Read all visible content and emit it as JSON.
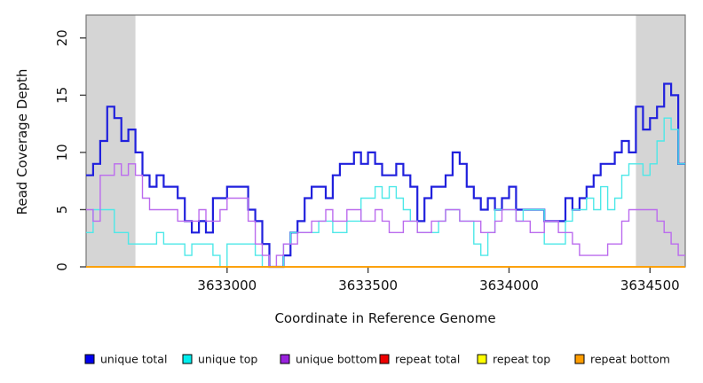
{
  "chart_data": {
    "type": "line",
    "subtype": "step",
    "title": "",
    "xlabel": "Coordinate in Reference Genome",
    "ylabel": "Read Coverage Depth",
    "xlim": [
      3632500,
      3634625
    ],
    "ylim": [
      0,
      22
    ],
    "x_ticks": [
      3633000,
      3633500,
      3634000,
      3634500
    ],
    "y_ticks": [
      0,
      5,
      10,
      15,
      20
    ],
    "grid": false,
    "legend_position": "bottom",
    "x_start": 3632500,
    "x_step": 25,
    "highlight_regions": [
      {
        "x0": 3632500,
        "x1": 3632675,
        "color": "#d5d5d5"
      },
      {
        "x0": 3634450,
        "x1": 3634625,
        "color": "#d5d5d5"
      }
    ],
    "series": [
      {
        "name": "unique total",
        "color": "#2020dd",
        "legend_color": "#0000ee",
        "line_width": 2.2,
        "values": [
          8,
          9,
          11,
          14,
          13,
          11,
          12,
          10,
          8,
          7,
          8,
          7,
          7,
          6,
          4,
          3,
          4,
          3,
          6,
          6,
          7,
          7,
          7,
          5,
          4,
          2,
          0,
          0,
          1,
          3,
          4,
          6,
          7,
          7,
          6,
          8,
          9,
          9,
          10,
          9,
          10,
          9,
          8,
          8,
          9,
          8,
          7,
          4,
          6,
          7,
          7,
          8,
          10,
          9,
          7,
          6,
          5,
          6,
          5,
          6,
          7,
          5,
          5,
          5,
          5,
          4,
          4,
          4,
          6,
          5,
          6,
          7,
          8,
          9,
          9,
          10,
          11,
          10,
          14,
          12,
          13,
          14,
          16,
          15,
          9
        ]
      },
      {
        "name": "unique top",
        "color": "#4de8e8",
        "legend_color": "#00eeee",
        "line_width": 1.4,
        "values": [
          3,
          5,
          5,
          5,
          3,
          3,
          2,
          2,
          2,
          2,
          3,
          2,
          2,
          2,
          1,
          2,
          2,
          2,
          1,
          0,
          2,
          2,
          2,
          2,
          1,
          0,
          0,
          0,
          2,
          3,
          3,
          3,
          3,
          4,
          4,
          3,
          3,
          4,
          4,
          6,
          6,
          7,
          6,
          7,
          6,
          5,
          4,
          3,
          3,
          3,
          4,
          5,
          5,
          4,
          4,
          2,
          1,
          3,
          5,
          5,
          5,
          4,
          5,
          5,
          5,
          2,
          2,
          2,
          4,
          5,
          5,
          6,
          5,
          7,
          5,
          6,
          8,
          9,
          9,
          8,
          9,
          11,
          13,
          12,
          9
        ]
      },
      {
        "name": "unique bottom",
        "color": "#bb6bee",
        "legend_color": "#9922dd",
        "line_width": 1.4,
        "values": [
          5,
          4,
          8,
          8,
          9,
          8,
          9,
          8,
          6,
          5,
          5,
          5,
          5,
          4,
          4,
          4,
          5,
          4,
          4,
          5,
          6,
          6,
          6,
          4,
          2,
          1,
          0,
          1,
          2,
          2,
          3,
          3,
          4,
          4,
          5,
          4,
          4,
          5,
          5,
          4,
          4,
          5,
          4,
          3,
          3,
          4,
          4,
          3,
          3,
          4,
          4,
          5,
          5,
          4,
          4,
          4,
          3,
          3,
          4,
          5,
          5,
          4,
          4,
          3,
          3,
          4,
          4,
          3,
          3,
          2,
          1,
          1,
          1,
          1,
          2,
          2,
          4,
          5,
          5,
          5,
          5,
          4,
          3,
          2,
          1
        ]
      },
      {
        "name": "repeat total",
        "color": "#dd0000",
        "legend_color": "#ee0000",
        "line_width": 1.4,
        "constant": 0,
        "values": []
      },
      {
        "name": "repeat top",
        "color": "#ffee00",
        "legend_color": "#ffff00",
        "line_width": 1.4,
        "constant": 0,
        "values": []
      },
      {
        "name": "repeat bottom",
        "color": "#ff9d00",
        "legend_color": "#ff9d00",
        "line_width": 1.6,
        "constant": 0,
        "values": []
      }
    ]
  },
  "axis": {
    "box_color": "#777777",
    "tick_color": "#444444",
    "label_color": "#111111"
  }
}
